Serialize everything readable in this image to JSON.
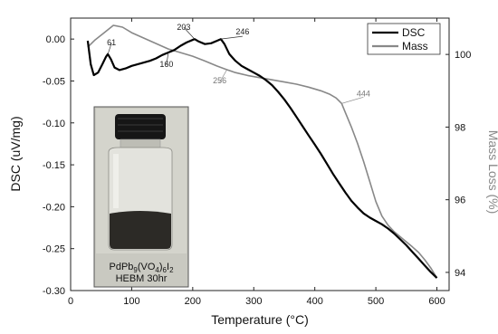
{
  "chart_data": {
    "type": "line",
    "xlabel": "Temperature (°C)",
    "ylabel": "DSC (uV/mg)",
    "y2label": "Mass Loss (%)",
    "xlim": [
      0,
      620
    ],
    "ylim": [
      -0.3,
      0.025
    ],
    "y2lim": [
      93.5,
      101.0
    ],
    "xticks": [
      "0",
      "100",
      "200",
      "300",
      "400",
      "500",
      "600"
    ],
    "yticks": [
      "0.00",
      "-0.05",
      "-0.10",
      "-0.15",
      "-0.20",
      "-0.25",
      "-0.30"
    ],
    "y2ticks": [
      "100",
      "98",
      "96",
      "94"
    ],
    "legend_position": "top-right",
    "series": [
      {
        "name": "DSC",
        "axis": "left",
        "color": "#000000",
        "x": [
          28,
          33,
          38,
          45,
          52,
          58,
          61,
          66,
          72,
          80,
          90,
          100,
          110,
          120,
          130,
          140,
          150,
          160,
          170,
          180,
          190,
          203,
          210,
          220,
          230,
          240,
          246,
          252,
          260,
          270,
          280,
          290,
          300,
          310,
          320,
          330,
          340,
          350,
          360,
          370,
          380,
          390,
          400,
          410,
          420,
          430,
          440,
          450,
          460,
          470,
          480,
          490,
          500,
          510,
          520,
          530,
          540,
          550,
          560,
          570,
          580,
          590,
          600
        ],
        "y": [
          -0.002,
          -0.03,
          -0.043,
          -0.04,
          -0.03,
          -0.021,
          -0.018,
          -0.024,
          -0.034,
          -0.037,
          -0.035,
          -0.032,
          -0.03,
          -0.028,
          -0.026,
          -0.023,
          -0.019,
          -0.016,
          -0.013,
          -0.008,
          -0.004,
          0.0,
          -0.003,
          -0.006,
          -0.005,
          -0.002,
          0.0,
          -0.006,
          -0.018,
          -0.026,
          -0.032,
          -0.036,
          -0.04,
          -0.044,
          -0.049,
          -0.055,
          -0.063,
          -0.072,
          -0.082,
          -0.093,
          -0.104,
          -0.115,
          -0.126,
          -0.137,
          -0.149,
          -0.161,
          -0.172,
          -0.183,
          -0.193,
          -0.201,
          -0.208,
          -0.213,
          -0.217,
          -0.221,
          -0.226,
          -0.232,
          -0.239,
          -0.246,
          -0.254,
          -0.262,
          -0.27,
          -0.278,
          -0.285
        ]
      },
      {
        "name": "Mass",
        "axis": "right",
        "color": "#888888",
        "x": [
          28,
          40,
          55,
          70,
          85,
          100,
          120,
          140,
          160,
          180,
          200,
          220,
          240,
          256,
          270,
          290,
          310,
          330,
          350,
          370,
          390,
          410,
          425,
          435,
          444,
          450,
          460,
          470,
          480,
          490,
          500,
          510,
          520,
          530,
          540,
          550,
          560,
          570,
          580,
          590,
          600
        ],
        "y": [
          100.2,
          100.4,
          100.6,
          100.8,
          100.75,
          100.6,
          100.45,
          100.3,
          100.15,
          100.05,
          99.95,
          99.82,
          99.68,
          99.58,
          99.5,
          99.42,
          99.36,
          99.3,
          99.24,
          99.18,
          99.1,
          99.0,
          98.9,
          98.8,
          98.65,
          98.4,
          98.0,
          97.55,
          97.05,
          96.5,
          95.95,
          95.55,
          95.3,
          95.12,
          94.98,
          94.84,
          94.7,
          94.55,
          94.35,
          94.12,
          93.85
        ]
      }
    ],
    "annotations": [
      {
        "label": "61",
        "x": 61,
        "series": "DSC"
      },
      {
        "label": "160",
        "x": 160,
        "series": "DSC"
      },
      {
        "label": "203",
        "x": 203,
        "series": "DSC"
      },
      {
        "label": "246",
        "x": 246,
        "series": "DSC"
      },
      {
        "label": "256",
        "x": 256,
        "series": "Mass"
      },
      {
        "label": "444",
        "x": 444,
        "series": "Mass"
      }
    ],
    "inset": {
      "caption_line1_prefix": "PdPb",
      "caption_line1_sub1": "9",
      "caption_line1_mid": "(VO",
      "caption_line1_sub2": "4",
      "caption_line1_mid2": ")",
      "caption_line1_sub3": "6",
      "caption_line1_mid3": "I",
      "caption_line1_sub4": "2",
      "caption_line2": "HEBM 30hr"
    }
  }
}
